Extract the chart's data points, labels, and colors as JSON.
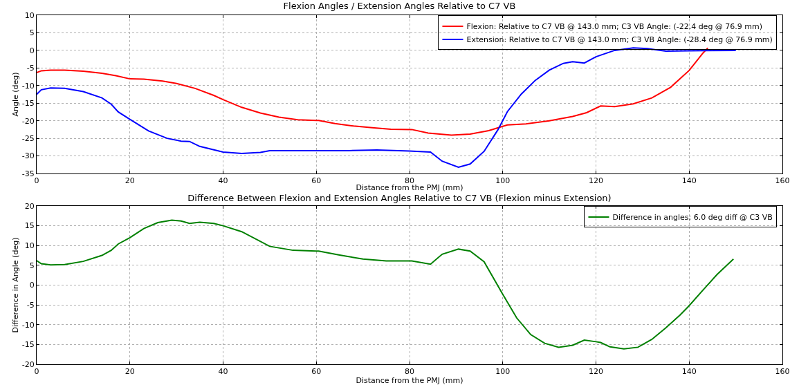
{
  "chart_data": [
    {
      "type": "line",
      "title": "Flexion Angles / Extension Angles Relative to C7 VB",
      "xlabel": "Distance from the PMJ (mm)",
      "ylabel": "Angle (deg)",
      "xlim": [
        0,
        160
      ],
      "xticks": [
        0,
        20,
        40,
        60,
        80,
        100,
        120,
        140,
        160
      ],
      "ylim": [
        -35,
        10
      ],
      "yticks": [
        -35,
        -30,
        -25,
        -20,
        -15,
        -10,
        -5,
        0,
        5,
        10
      ],
      "grid": true,
      "legend": "top right",
      "series": [
        {
          "name": "Flexion: Relative to C7 VB @ 143.0 mm; C3 VB Angle: (-22.4 deg @ 76.9 mm)",
          "color": "#ff0000",
          "x": [
            0,
            1,
            3,
            6,
            10,
            14,
            17,
            20,
            23,
            27,
            30,
            34,
            38,
            40,
            44,
            48,
            52,
            56,
            60,
            60.5,
            64,
            68,
            72,
            76,
            80.5,
            84,
            89,
            93,
            97,
            100,
            101,
            105,
            110,
            115,
            118,
            121,
            124,
            128,
            132,
            136,
            140,
            143,
            144
          ],
          "values": [
            -6.3,
            -5.8,
            -5.6,
            -5.6,
            -5.9,
            -6.5,
            -7.2,
            -8.1,
            -8.2,
            -8.7,
            -9.4,
            -10.8,
            -12.8,
            -14,
            -16.2,
            -17.8,
            -19,
            -19.7,
            -19.9,
            -19.9,
            -20.8,
            -21.5,
            -22,
            -22.4,
            -22.5,
            -23.5,
            -24.1,
            -23.8,
            -22.8,
            -21.6,
            -21.2,
            -20.9,
            -20,
            -18.8,
            -17.7,
            -15.8,
            -16,
            -15.2,
            -13.5,
            -10.5,
            -5.7,
            -0.7,
            0.7
          ]
        },
        {
          "name": "Extension: Relative to C7 VB @ 143.0 mm; C3 VB Angle: (-28.4 deg @ 76.9 mm)",
          "color": "#0000ff",
          "x": [
            0,
            1,
            3,
            6,
            10,
            14,
            16,
            17.5,
            20,
            24,
            28,
            31,
            32.8,
            35,
            40,
            44,
            48,
            50,
            60,
            67,
            73,
            80,
            84.5,
            87,
            90.5,
            93,
            96,
            99,
            101,
            104,
            107,
            110,
            113,
            115,
            117.5,
            120,
            124,
            128,
            131,
            135,
            140,
            150
          ],
          "values": [
            -12.5,
            -11.2,
            -10.7,
            -10.8,
            -11.7,
            -13.5,
            -15.3,
            -17.5,
            -19.6,
            -22.9,
            -25,
            -25.8,
            -25.9,
            -27.3,
            -28.9,
            -29.3,
            -29,
            -28.5,
            -28.5,
            -28.5,
            -28.3,
            -28.6,
            -28.9,
            -31.5,
            -33.2,
            -32.3,
            -28.7,
            -22.5,
            -17.4,
            -12.4,
            -8.5,
            -5.6,
            -3.7,
            -3.2,
            -3.6,
            -1.8,
            0,
            0.7,
            0.5,
            -0.2,
            -0.1,
            0
          ]
        }
      ]
    },
    {
      "type": "line",
      "title": "Difference Between Flexion and Extension Angles Relative to C7 VB (Flexion minus Extension)",
      "xlabel": "Distance from the PMJ (mm)",
      "ylabel": "Difference in Angle (deg)",
      "xlim": [
        0,
        160
      ],
      "xticks": [
        0,
        20,
        40,
        60,
        80,
        100,
        120,
        140,
        160
      ],
      "ylim": [
        -20,
        20
      ],
      "yticks": [
        -20,
        -15,
        -10,
        -5,
        0,
        5,
        10,
        15,
        20
      ],
      "grid": true,
      "legend": "top right",
      "series": [
        {
          "name": "Difference in angles; 6.0 deg diff @ C3 VB",
          "color": "#008000",
          "x": [
            0,
            1,
            3,
            6,
            10,
            14,
            16,
            17.5,
            20,
            23,
            26,
            29,
            31,
            32.8,
            35,
            38,
            40,
            44,
            50,
            55,
            60,
            60.5,
            65,
            70,
            75,
            80.5,
            84.5,
            87,
            90.5,
            93,
            96,
            100,
            103,
            106,
            109,
            112,
            115,
            117.5,
            120,
            121,
            123,
            126,
            129,
            132,
            135,
            138,
            140,
            143,
            146,
            149.5
          ],
          "values": [
            6.2,
            5.4,
            5.1,
            5.2,
            6,
            7.5,
            8.8,
            10.4,
            12,
            14.3,
            15.8,
            16.4,
            16.2,
            15.6,
            15.9,
            15.6,
            15,
            13.5,
            9.8,
            8.8,
            8.6,
            8.6,
            7.6,
            6.6,
            6.1,
            6.1,
            5.3,
            7.8,
            9.1,
            8.6,
            5.9,
            -2.3,
            -8.3,
            -12.5,
            -14.7,
            -15.7,
            -15.2,
            -13.9,
            -14.3,
            -14.5,
            -15.6,
            -16.1,
            -15.7,
            -13.7,
            -10.8,
            -7.6,
            -5.2,
            -1.2,
            2.7,
            6.6
          ]
        }
      ]
    }
  ]
}
